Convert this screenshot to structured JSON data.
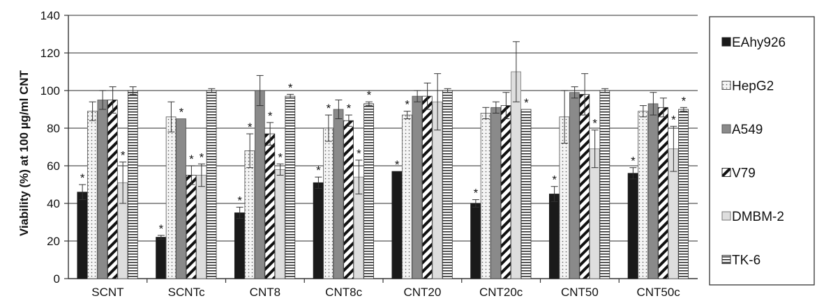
{
  "chart_data": {
    "type": "bar",
    "ylabel": "Viability (%) at 100 µg/ml CNT",
    "ylim": [
      0,
      140
    ],
    "yticks": [
      0,
      20,
      40,
      60,
      80,
      100,
      120,
      140
    ],
    "grid": true,
    "legend_position": "right",
    "categories": [
      "SCNT",
      "SCNTc",
      "CNT8",
      "CNT8c",
      "CNT20",
      "CNT20c",
      "CNT50",
      "CNT50c"
    ],
    "series": [
      {
        "name": "EAhy926",
        "values": [
          46,
          22,
          35,
          51,
          57,
          40,
          45,
          56
        ],
        "errors": [
          4,
          1,
          3,
          3,
          0,
          2,
          4,
          3
        ],
        "significant": [
          true,
          true,
          true,
          true,
          true,
          true,
          true,
          true
        ]
      },
      {
        "name": "HepG2",
        "values": [
          89,
          86,
          68,
          80,
          87,
          88,
          86,
          89
        ],
        "errors": [
          5,
          8,
          9,
          7,
          2,
          3,
          14,
          3
        ],
        "significant": [
          false,
          false,
          true,
          true,
          true,
          false,
          false,
          false
        ]
      },
      {
        "name": "A549",
        "values": [
          95,
          85,
          100,
          90,
          97,
          91,
          99,
          93
        ],
        "errors": [
          5,
          0,
          8,
          5,
          3,
          3,
          3,
          6
        ],
        "significant": [
          false,
          true,
          false,
          false,
          false,
          false,
          false,
          false
        ]
      },
      {
        "name": "V79",
        "values": [
          95,
          55,
          77,
          84,
          97,
          92,
          98,
          91
        ],
        "errors": [
          7,
          5,
          6,
          3,
          7,
          7,
          11,
          5
        ],
        "significant": [
          false,
          true,
          true,
          true,
          false,
          false,
          false,
          false
        ]
      },
      {
        "name": "DMBM-2",
        "values": [
          51,
          55,
          58,
          54,
          94,
          110,
          69,
          69
        ],
        "errors": [
          11,
          6,
          3,
          9,
          15,
          16,
          10,
          12
        ],
        "significant": [
          true,
          true,
          true,
          true,
          false,
          false,
          true,
          true
        ]
      },
      {
        "name": "TK-6",
        "values": [
          100,
          100,
          97,
          93,
          100,
          90,
          100,
          90
        ],
        "errors": [
          2,
          1,
          1,
          1,
          1,
          0,
          1,
          1
        ],
        "significant": [
          false,
          false,
          true,
          true,
          false,
          true,
          false,
          true
        ]
      }
    ],
    "annotation_symbol": "*",
    "colors": {
      "EAhy926": "#1a1a1a",
      "HepG2": "#f4f4f4",
      "A549": "#8a8a8a",
      "V79": "#ffffff",
      "DMBM-2": "#dedede",
      "TK-6": "#ffffff"
    }
  }
}
